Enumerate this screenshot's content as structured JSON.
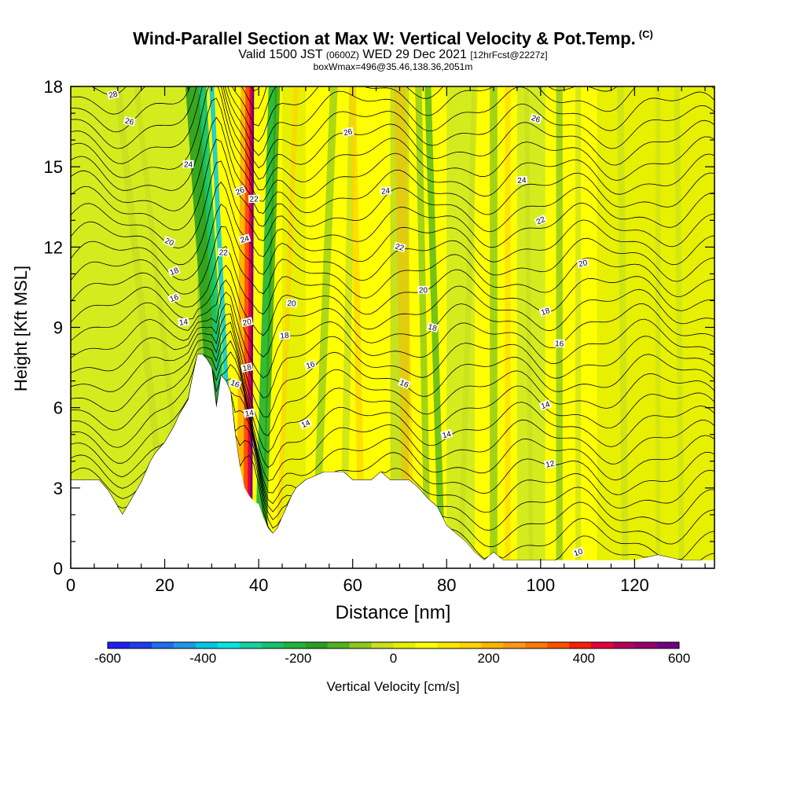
{
  "header": {
    "title": "Wind-Parallel Section at Max W: Vertical Velocity & Pot.Temp.",
    "title_mark": "(C)",
    "valid_prefix": "Valid 1500 JST",
    "valid_utc": "(0600Z)",
    "valid_date": "WED 29 Dec 2021",
    "forecast": "[12hrFcst@2227z]",
    "box_info": "boxWmax=496@35.46,138.36,2051m"
  },
  "chart_data": {
    "type": "heatmap",
    "xlabel": "Distance [nm]",
    "ylabel": "Height [Kft MSL]",
    "xlim": [
      0,
      137
    ],
    "ylim": [
      0,
      18
    ],
    "x_ticks": [
      "0",
      "20",
      "40",
      "60",
      "80",
      "100",
      "120"
    ],
    "y_ticks": [
      "0",
      "3",
      "6",
      "9",
      "12",
      "15",
      "18"
    ],
    "colorbar": {
      "label": "Vertical Velocity [cm/s]",
      "range": [
        -600,
        600
      ],
      "tick_labels": [
        "-600",
        "-400",
        "-200",
        "0",
        "200",
        "400",
        "600"
      ],
      "colors": [
        "#1e1ef5",
        "#1e3cf0",
        "#1e6ef0",
        "#1e96ea",
        "#00c8e6",
        "#00e6e6",
        "#14d2a0",
        "#14c36e",
        "#1eb43c",
        "#28a01e",
        "#50b41e",
        "#8cc81e",
        "#c8e01e",
        "#e6f000",
        "#ffff00",
        "#ffe600",
        "#ffd200",
        "#ffb400",
        "#ff9614",
        "#ff7800",
        "#ff5000",
        "#ff1e00",
        "#e6003c",
        "#b4005a",
        "#96006e",
        "#6e0082"
      ]
    },
    "theta_contour_labels": [
      "10",
      "12",
      "14",
      "16",
      "18",
      "20",
      "22",
      "24",
      "26",
      "28"
    ],
    "max_updraft_cm_s": 496,
    "max_updraft_location_lat": 35.46,
    "max_updraft_location_lon": 138.36,
    "max_updraft_height_m": 2051,
    "terrain_kft": [
      [
        0,
        3.3
      ],
      [
        2,
        3.3
      ],
      [
        4,
        3.3
      ],
      [
        6,
        3.3
      ],
      [
        8,
        2.9
      ],
      [
        9,
        2.6
      ],
      [
        10,
        2.3
      ],
      [
        11,
        2.0
      ],
      [
        12,
        2.3
      ],
      [
        13,
        2.6
      ],
      [
        14,
        2.9
      ],
      [
        15,
        3.2
      ],
      [
        16,
        3.6
      ],
      [
        17,
        4.0
      ],
      [
        18,
        4.3
      ],
      [
        19,
        4.5
      ],
      [
        20,
        4.7
      ],
      [
        21,
        5.0
      ],
      [
        22,
        5.3
      ],
      [
        23,
        5.7
      ],
      [
        24,
        6.0
      ],
      [
        25,
        6.3
      ],
      [
        26,
        7.2
      ],
      [
        27,
        8.0
      ],
      [
        28,
        8.0
      ],
      [
        29,
        7.8
      ],
      [
        30,
        7.5
      ],
      [
        31,
        6.0
      ],
      [
        32,
        7.2
      ],
      [
        33,
        7.0
      ],
      [
        34,
        6.6
      ],
      [
        35,
        5.0
      ],
      [
        36,
        3.8
      ],
      [
        37,
        3.0
      ],
      [
        38,
        2.7
      ],
      [
        39,
        2.5
      ],
      [
        40,
        2.4
      ],
      [
        41,
        1.9
      ],
      [
        42,
        1.5
      ],
      [
        43,
        1.3
      ],
      [
        44,
        1.5
      ],
      [
        45,
        1.9
      ],
      [
        46,
        2.3
      ],
      [
        47,
        2.7
      ],
      [
        48,
        3.0
      ],
      [
        50,
        3.3
      ],
      [
        54,
        3.6
      ],
      [
        58,
        3.6
      ],
      [
        60,
        3.3
      ],
      [
        62,
        3.3
      ],
      [
        64,
        3.3
      ],
      [
        66,
        3.6
      ],
      [
        68,
        3.3
      ],
      [
        70,
        3.3
      ],
      [
        72,
        3.3
      ],
      [
        74,
        3.0
      ],
      [
        76,
        2.6
      ],
      [
        78,
        2.3
      ],
      [
        80,
        1.6
      ],
      [
        82,
        1.3
      ],
      [
        84,
        1.0
      ],
      [
        86,
        0.6
      ],
      [
        88,
        0.3
      ],
      [
        90,
        0.6
      ],
      [
        92,
        0.3
      ],
      [
        94,
        0.3
      ],
      [
        100,
        0.3
      ],
      [
        110,
        0.3
      ],
      [
        120,
        0.3
      ],
      [
        125,
        0.5
      ],
      [
        130,
        0.3
      ],
      [
        137,
        0.3
      ]
    ]
  }
}
